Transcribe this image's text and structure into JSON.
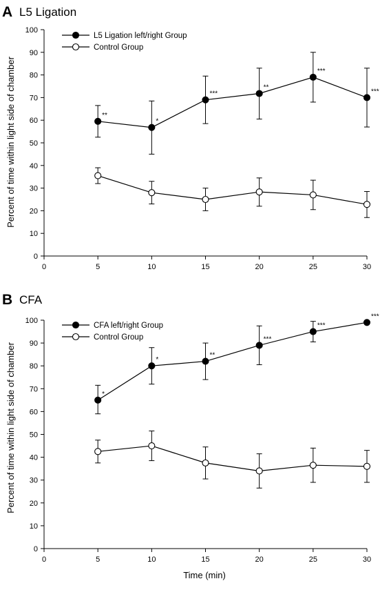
{
  "figure": {
    "panels": [
      {
        "letter": "A",
        "title": "L5 Ligation"
      },
      {
        "letter": "B",
        "title": "CFA"
      }
    ]
  },
  "chart_data": [
    {
      "type": "line",
      "panel": "A",
      "title": "L5 Ligation",
      "xlabel": "",
      "ylabel": "Percent of time within light side of chamber",
      "xlim": [
        0,
        30
      ],
      "ylim": [
        0,
        100
      ],
      "xticks": [
        0,
        5,
        10,
        15,
        20,
        25,
        30
      ],
      "yticks": [
        0,
        10,
        20,
        30,
        40,
        50,
        60,
        70,
        80,
        90,
        100
      ],
      "legend_position": "top-left",
      "grid": false,
      "x": [
        5,
        10,
        15,
        20,
        25,
        30
      ],
      "series": [
        {
          "name": "L5 Ligation left/right Group",
          "marker": "filled-circle",
          "values": [
            59.5,
            56.8,
            69,
            71.8,
            79,
            70
          ],
          "err_upper": [
            66.5,
            68.5,
            79.5,
            83,
            90,
            83
          ],
          "err_lower": [
            52.5,
            45,
            58.5,
            60.5,
            68,
            57
          ],
          "significance": [
            "**",
            "*",
            "***",
            "**",
            "***",
            "***"
          ]
        },
        {
          "name": "Control Group",
          "marker": "open-circle",
          "values": [
            35.5,
            28,
            25,
            28.3,
            27,
            22.8
          ],
          "err_upper": [
            39,
            33,
            30,
            34.5,
            33.5,
            28.5
          ],
          "err_lower": [
            32,
            23,
            20,
            22,
            20.5,
            17
          ],
          "significance": [
            "",
            "",
            "",
            "",
            "",
            ""
          ]
        }
      ]
    },
    {
      "type": "line",
      "panel": "B",
      "title": "CFA",
      "xlabel": "Time (min)",
      "ylabel": "Percent of time within light side of chamber",
      "xlim": [
        0,
        30
      ],
      "ylim": [
        0,
        100
      ],
      "xticks": [
        0,
        5,
        10,
        15,
        20,
        25,
        30
      ],
      "yticks": [
        0,
        10,
        20,
        30,
        40,
        50,
        60,
        70,
        80,
        90,
        100
      ],
      "legend_position": "top-left",
      "grid": false,
      "x": [
        5,
        10,
        15,
        20,
        25,
        30
      ],
      "series": [
        {
          "name": "CFA left/right Group",
          "marker": "filled-circle",
          "values": [
            65,
            80,
            82,
            89,
            95,
            99
          ],
          "err_upper": [
            71.5,
            88,
            90,
            97.5,
            99.5,
            99
          ],
          "err_lower": [
            59,
            72,
            74,
            80.5,
            90.5,
            99
          ],
          "significance": [
            "*",
            "*",
            "**",
            "***",
            "***",
            "***"
          ]
        },
        {
          "name": "Control Group",
          "marker": "open-circle",
          "values": [
            42.5,
            45,
            37.5,
            34,
            36.5,
            36
          ],
          "err_upper": [
            47.5,
            51.5,
            44.5,
            41.5,
            44,
            43
          ],
          "err_lower": [
            37.5,
            38.5,
            30.5,
            26.5,
            29,
            29
          ],
          "significance": [
            "",
            "",
            "",
            "",
            "",
            ""
          ]
        }
      ]
    }
  ]
}
